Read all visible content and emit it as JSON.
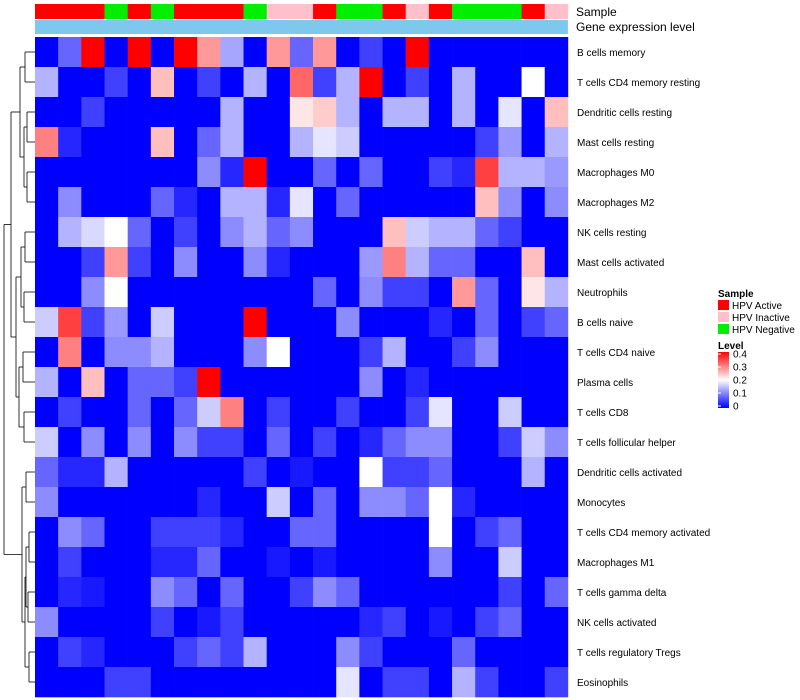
{
  "chart_data": {
    "type": "heatmap",
    "title": "",
    "xlabel": "",
    "ylabel": "",
    "annotation_rows": [
      "Sample",
      "Gene expression level"
    ],
    "sample_groups": [
      "A",
      "A",
      "A",
      "N",
      "A",
      "N",
      "A",
      "A",
      "A",
      "N",
      "I",
      "I",
      "A",
      "N",
      "N",
      "A",
      "I",
      "A",
      "N",
      "N",
      "N",
      "A",
      "I"
    ],
    "row_labels": [
      "B cells memory",
      "T cells CD4 memory resting",
      "Dendritic cells resting",
      "Mast cells resting",
      "Macrophages M0",
      "Macrophages M2",
      "NK cells resting",
      "Mast cells activated",
      "Neutrophils",
      "B cells naive",
      "T cells CD4 naive",
      "Plasma cells",
      "T cells CD8",
      "T cells follicular helper",
      "Dendritic cells activated",
      "Monocytes",
      "T cells CD4 memory activated",
      "Macrophages M1",
      "T cells gamma delta",
      "NK cells activated",
      "T cells regulatory  Tregs",
      "Eosinophils"
    ],
    "values": [
      [
        0.0,
        0.08,
        0.4,
        0.0,
        0.4,
        0.0,
        0.4,
        0.28,
        0.13,
        0.0,
        0.28,
        0.08,
        0.28,
        0.0,
        0.05,
        0.0,
        0.4,
        0.0,
        0.0,
        0.0,
        0.0,
        0.0,
        0.0
      ],
      [
        0.14,
        0.0,
        0.0,
        0.05,
        0.0,
        0.25,
        0.0,
        0.05,
        0.0,
        0.14,
        0.0,
        0.32,
        0.05,
        0.14,
        0.4,
        0.0,
        0.05,
        0.0,
        0.14,
        0.0,
        0.0,
        0.2,
        0.0
      ],
      [
        0.0,
        0.0,
        0.05,
        0.0,
        0.0,
        0.0,
        0.0,
        0.0,
        0.14,
        0.0,
        0.0,
        0.22,
        0.24,
        0.14,
        0.0,
        0.14,
        0.14,
        0.0,
        0.14,
        0.0,
        0.18,
        0.0,
        0.25
      ],
      [
        0.3,
        0.03,
        0.0,
        0.0,
        0.0,
        0.25,
        0.0,
        0.08,
        0.14,
        0.0,
        0.0,
        0.14,
        0.18,
        0.16,
        0.0,
        0.0,
        0.0,
        0.0,
        0.0,
        0.05,
        0.12,
        0.0,
        0.14
      ],
      [
        0.0,
        0.0,
        0.0,
        0.0,
        0.0,
        0.0,
        0.0,
        0.11,
        0.03,
        0.4,
        0.0,
        0.0,
        0.08,
        0.0,
        0.08,
        0.0,
        0.0,
        0.05,
        0.03,
        0.35,
        0.14,
        0.14,
        0.12
      ],
      [
        0.0,
        0.11,
        0.0,
        0.0,
        0.0,
        0.08,
        0.03,
        0.0,
        0.14,
        0.14,
        0.03,
        0.18,
        0.0,
        0.08,
        0.0,
        0.0,
        0.0,
        0.0,
        0.0,
        0.25,
        0.11,
        0.0,
        0.11
      ],
      [
        0.0,
        0.14,
        0.17,
        0.2,
        0.08,
        0.0,
        0.05,
        0.0,
        0.11,
        0.14,
        0.08,
        0.11,
        0.0,
        0.0,
        0.0,
        0.25,
        0.16,
        0.14,
        0.14,
        0.08,
        0.05,
        0.0,
        0.0
      ],
      [
        0.0,
        0.0,
        0.05,
        0.28,
        0.05,
        0.0,
        0.11,
        0.0,
        0.0,
        0.11,
        0.03,
        0.0,
        0.0,
        0.0,
        0.12,
        0.3,
        0.14,
        0.08,
        0.08,
        0.0,
        0.0,
        0.25,
        0.0
      ],
      [
        0.0,
        0.0,
        0.11,
        0.2,
        0.0,
        0.0,
        0.0,
        0.0,
        0.0,
        0.0,
        0.0,
        0.0,
        0.08,
        0.0,
        0.11,
        0.05,
        0.05,
        0.0,
        0.28,
        0.08,
        0.0,
        0.22,
        0.14
      ],
      [
        0.16,
        0.35,
        0.05,
        0.12,
        0.0,
        0.16,
        0.0,
        0.0,
        0.0,
        0.4,
        0.0,
        0.0,
        0.0,
        0.11,
        0.0,
        0.0,
        0.0,
        0.03,
        0.0,
        0.08,
        0.0,
        0.05,
        0.08
      ],
      [
        0.0,
        0.3,
        0.0,
        0.11,
        0.11,
        0.14,
        0.0,
        0.0,
        0.0,
        0.11,
        0.2,
        0.0,
        0.0,
        0.0,
        0.05,
        0.14,
        0.0,
        0.0,
        0.05,
        0.11,
        0.0,
        0.0,
        0.0
      ],
      [
        0.14,
        0.0,
        0.25,
        0.0,
        0.08,
        0.08,
        0.05,
        0.4,
        0.0,
        0.0,
        0.0,
        0.0,
        0.0,
        0.0,
        0.11,
        0.0,
        0.03,
        0.0,
        0.0,
        0.0,
        0.0,
        0.0,
        0.0
      ],
      [
        0.0,
        0.05,
        0.0,
        0.0,
        0.08,
        0.0,
        0.08,
        0.16,
        0.3,
        0.0,
        0.05,
        0.0,
        0.0,
        0.05,
        0.0,
        0.0,
        0.05,
        0.18,
        0.0,
        0.0,
        0.16,
        0.0,
        0.0
      ],
      [
        0.16,
        0.0,
        0.11,
        0.0,
        0.11,
        0.0,
        0.11,
        0.05,
        0.05,
        0.0,
        0.08,
        0.0,
        0.05,
        0.0,
        0.03,
        0.08,
        0.11,
        0.11,
        0.0,
        0.0,
        0.05,
        0.16,
        0.11
      ],
      [
        0.08,
        0.03,
        0.03,
        0.14,
        0.0,
        0.0,
        0.0,
        0.0,
        0.0,
        0.05,
        0.0,
        0.02,
        0.0,
        0.0,
        0.2,
        0.05,
        0.05,
        0.08,
        0.0,
        0.0,
        0.0,
        0.14,
        0.0
      ],
      [
        0.11,
        0.0,
        0.0,
        0.0,
        0.0,
        0.0,
        0.0,
        0.03,
        0.0,
        0.0,
        0.16,
        0.0,
        0.08,
        0.0,
        0.11,
        0.11,
        0.08,
        0.2,
        0.03,
        0.0,
        0.0,
        0.0,
        0.0
      ],
      [
        0.0,
        0.11,
        0.08,
        0.0,
        0.0,
        0.05,
        0.05,
        0.05,
        0.03,
        0.0,
        0.0,
        0.08,
        0.08,
        0.0,
        0.0,
        0.0,
        0.0,
        0.2,
        0.0,
        0.05,
        0.08,
        0.0,
        0.0
      ],
      [
        0.0,
        0.05,
        0.0,
        0.0,
        0.0,
        0.03,
        0.03,
        0.08,
        0.0,
        0.0,
        0.02,
        0.0,
        0.02,
        0.0,
        0.0,
        0.0,
        0.0,
        0.11,
        0.0,
        0.0,
        0.16,
        0.0,
        0.0
      ],
      [
        0.0,
        0.03,
        0.02,
        0.0,
        0.0,
        0.11,
        0.08,
        0.0,
        0.08,
        0.0,
        0.0,
        0.05,
        0.11,
        0.08,
        0.0,
        0.0,
        0.0,
        0.0,
        0.0,
        0.0,
        0.05,
        0.0,
        0.08
      ],
      [
        0.11,
        0.0,
        0.0,
        0.0,
        0.0,
        0.05,
        0.0,
        0.02,
        0.05,
        0.0,
        0.0,
        0.0,
        0.0,
        0.0,
        0.03,
        0.05,
        0.0,
        0.02,
        0.0,
        0.05,
        0.08,
        0.0,
        0.0
      ],
      [
        0.0,
        0.05,
        0.03,
        0.0,
        0.0,
        0.0,
        0.05,
        0.08,
        0.05,
        0.14,
        0.0,
        0.0,
        0.0,
        0.11,
        0.05,
        0.0,
        0.0,
        0.0,
        0.08,
        0.0,
        0.0,
        0.0,
        0.0
      ],
      [
        0.0,
        0.0,
        0.0,
        0.05,
        0.05,
        0.0,
        0.0,
        0.0,
        0.0,
        0.0,
        0.0,
        0.0,
        0.0,
        0.18,
        0.0,
        0.05,
        0.05,
        0.0,
        0.14,
        0.05,
        0.0,
        0.0,
        0.05
      ]
    ],
    "legend_sample": {
      "title": "Sample",
      "entries": [
        {
          "key": "A",
          "label": "HPV Active",
          "color": "#ff0000"
        },
        {
          "key": "I",
          "label": "HPV Inactive",
          "color": "#ffc0cb"
        },
        {
          "key": "N",
          "label": "HPV Negative",
          "color": "#00ee00"
        }
      ]
    },
    "legend_level": {
      "title": "Level",
      "ticks": [
        0.4,
        0.3,
        0.2,
        0.1,
        0
      ],
      "tick_labels": [
        "0.4",
        "0.3",
        "0.2",
        "0.1",
        "0"
      ],
      "min": 0,
      "max": 0.4
    },
    "gene_expression_color": "#7ec8ee",
    "colors": {
      "low": "#0000ff",
      "mid": "#ffffff",
      "high": "#ff0000"
    }
  }
}
